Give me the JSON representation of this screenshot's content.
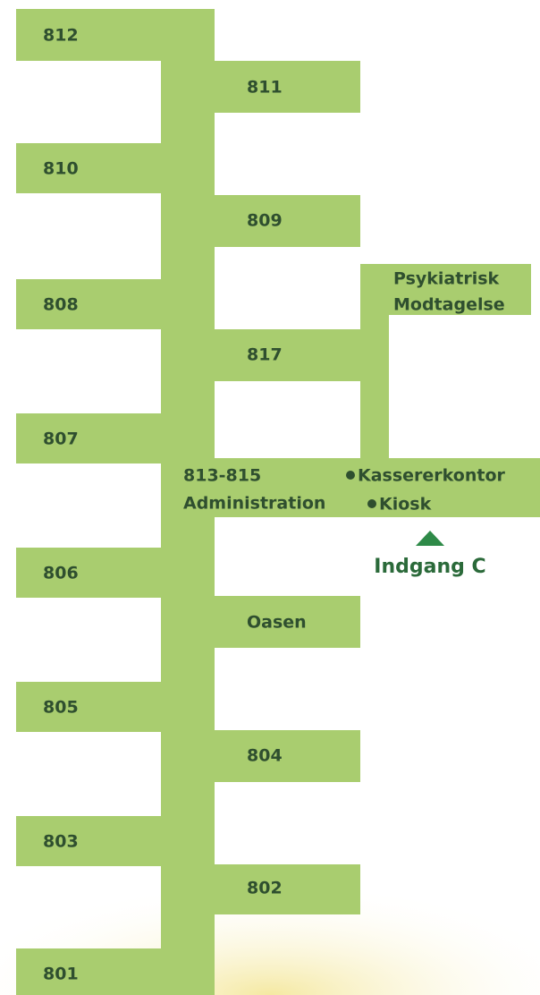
{
  "rooms": {
    "left": [
      "812",
      "810",
      "808",
      "807",
      "806",
      "805",
      "803",
      "801"
    ],
    "right": [
      "811",
      "809",
      "817",
      "Oasen",
      "804",
      "802"
    ]
  },
  "psykiatrisk": [
    "Psykiatrisk",
    "Modtagelse"
  ],
  "administration": [
    "813-815",
    "Administration"
  ],
  "points": [
    "Kassererkontor",
    "Kiosk"
  ],
  "entrance": "Indgang C"
}
